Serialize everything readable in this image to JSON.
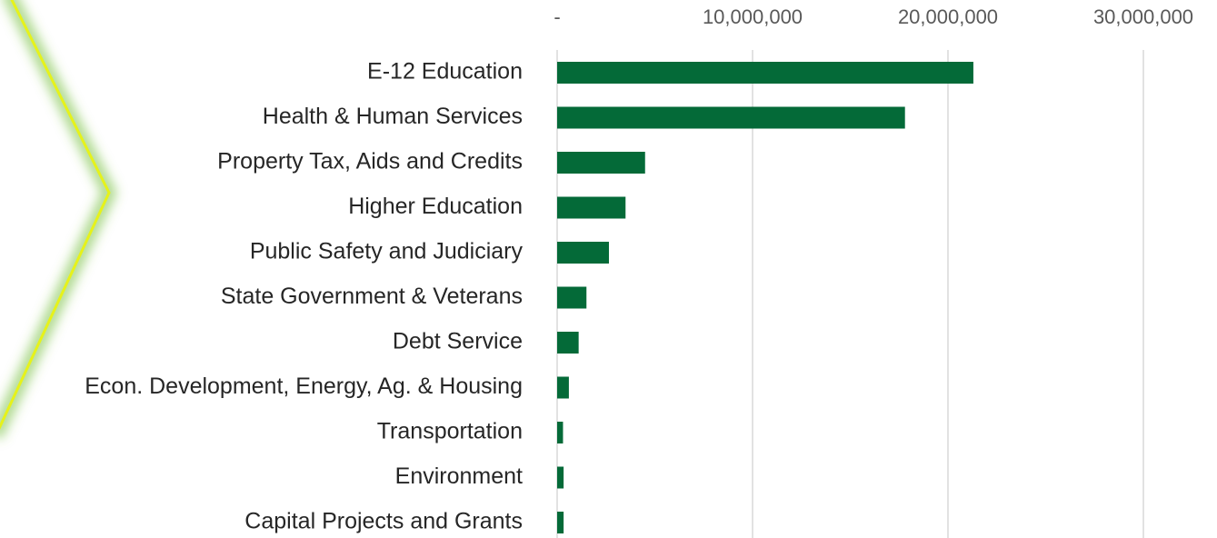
{
  "chart_data": {
    "type": "bar",
    "orientation": "horizontal",
    "categories": [
      "E-12 Education",
      "Health & Human Services",
      "Property Tax, Aids and Credits",
      "Higher Education",
      "Public Safety and Judiciary",
      "State Government & Veterans",
      "Debt Service",
      "Econ. Development, Energy, Ag. & Housing",
      "Transportation",
      "Environment",
      "Capital Projects and Grants"
    ],
    "values": [
      21300000,
      17800000,
      4500000,
      3500000,
      2650000,
      1500000,
      1100000,
      600000,
      300000,
      330000,
      330000
    ],
    "color": "#046a38",
    "xlim": [
      0,
      30000000
    ],
    "xticks": [
      {
        "value": 0,
        "label": "-"
      },
      {
        "value": 10000000,
        "label": "10,000,000"
      },
      {
        "value": 20000000,
        "label": "20,000,000"
      },
      {
        "value": 30000000,
        "label": "30,000,000"
      }
    ],
    "grid": true
  }
}
